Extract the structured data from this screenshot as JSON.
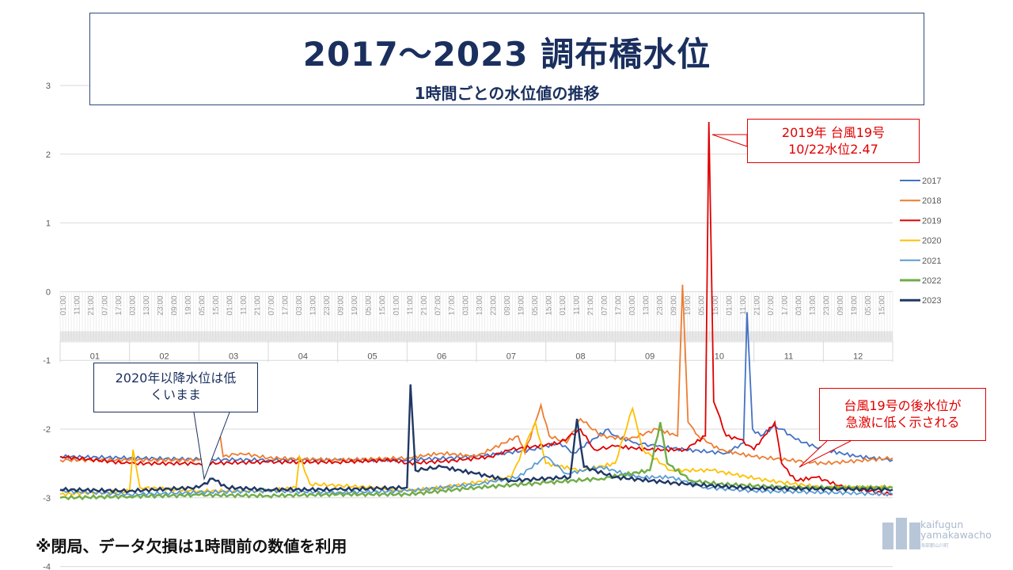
{
  "header": {
    "title": "2017～2023 調布橋水位",
    "subtitle": "1時間ごとの水位値の推移"
  },
  "callouts": {
    "typhoon_peak": [
      "2019年 台風19号",
      "10/22水位2.47"
    ],
    "after_2020": [
      "2020年以降水位は低",
      "くいまま"
    ],
    "after_typhoon": [
      "台風19号の後水位が",
      "急激に低く示される"
    ]
  },
  "footnote": "※閉局、データ欠損は1時間前の数値を利用",
  "logo": {
    "line1": "kaifugun",
    "line2": "yamakawacho",
    "line3": "海部郡山川町"
  },
  "colors": {
    "2017": "#4472C4",
    "2018": "#ED7D31",
    "2019": "#E00000",
    "2020": "#FFC000",
    "2021": "#5B9BD5",
    "2022": "#70AD47",
    "2023": "#203864"
  },
  "chart_data": {
    "type": "line",
    "title": "2017～2023 調布橋水位",
    "ylim": [
      -4,
      3
    ],
    "yticks": [
      3,
      2,
      1,
      0,
      -1,
      -2,
      -3,
      -4
    ],
    "months": [
      "01",
      "02",
      "03",
      "04",
      "05",
      "06",
      "07",
      "08",
      "09",
      "10",
      "11",
      "12"
    ],
    "hour_tick_cycle": [
      "01:00",
      "11:00",
      "21:00",
      "07:00",
      "17:00",
      "03:00",
      "13:00",
      "23:00",
      "09:00",
      "19:00",
      "05:00",
      "15:00"
    ],
    "legend": [
      "2017",
      "2018",
      "2019",
      "2020",
      "2021",
      "2022",
      "2023"
    ],
    "legend_position": "right",
    "series": [
      {
        "name": "2017",
        "points": [
          [
            0,
            -2.4
          ],
          [
            1,
            -2.42
          ],
          [
            2,
            -2.44
          ],
          [
            3,
            -2.45
          ],
          [
            4,
            -2.45
          ],
          [
            5,
            -2.45
          ],
          [
            6,
            -2.4
          ],
          [
            6.8,
            -2.3
          ],
          [
            7.2,
            -2.2
          ],
          [
            7.4,
            -2.35
          ],
          [
            7.9,
            -2.0
          ],
          [
            8.0,
            -2.1
          ],
          [
            8.3,
            -2.2
          ],
          [
            8.6,
            -2.25
          ],
          [
            9.0,
            -2.3
          ],
          [
            9.6,
            -2.35
          ],
          [
            9.85,
            -2.2
          ],
          [
            9.9,
            -0.3
          ],
          [
            9.98,
            -2.0
          ],
          [
            10.1,
            -2.1
          ],
          [
            10.3,
            -1.95
          ],
          [
            10.4,
            -2.0
          ],
          [
            10.6,
            -2.15
          ],
          [
            11.0,
            -2.3
          ],
          [
            11.5,
            -2.4
          ],
          [
            12,
            -2.45
          ]
        ]
      },
      {
        "name": "2018",
        "points": [
          [
            0,
            -2.45
          ],
          [
            1,
            -2.45
          ],
          [
            2.0,
            -2.45
          ],
          [
            2.3,
            -2.05
          ],
          [
            2.35,
            -2.4
          ],
          [
            2.6,
            -2.35
          ],
          [
            3,
            -2.42
          ],
          [
            4,
            -2.45
          ],
          [
            5,
            -2.42
          ],
          [
            5.5,
            -2.35
          ],
          [
            6,
            -2.4
          ],
          [
            6.6,
            -2.1
          ],
          [
            6.7,
            -2.35
          ],
          [
            6.93,
            -1.65
          ],
          [
            7.05,
            -2.1
          ],
          [
            7.3,
            -2.2
          ],
          [
            7.5,
            -1.85
          ],
          [
            7.8,
            -2.1
          ],
          [
            8.2,
            -2.15
          ],
          [
            8.6,
            -2.0
          ],
          [
            8.9,
            -2.1
          ],
          [
            8.97,
            0.1
          ],
          [
            9.05,
            -1.9
          ],
          [
            9.2,
            -2.1
          ],
          [
            9.5,
            -2.3
          ],
          [
            10,
            -2.4
          ],
          [
            11,
            -2.5
          ],
          [
            12,
            -2.42
          ]
        ]
      },
      {
        "name": "2019",
        "points": [
          [
            0,
            -2.4
          ],
          [
            1,
            -2.5
          ],
          [
            2,
            -2.5
          ],
          [
            3,
            -2.48
          ],
          [
            4,
            -2.48
          ],
          [
            4.8,
            -2.45
          ],
          [
            5,
            -2.5
          ],
          [
            5.8,
            -2.45
          ],
          [
            6.2,
            -2.4
          ],
          [
            6.5,
            -2.3
          ],
          [
            7.2,
            -2.2
          ],
          [
            7.5,
            -2.0
          ],
          [
            7.7,
            -2.3
          ],
          [
            8.0,
            -2.25
          ],
          [
            8.5,
            -2.3
          ],
          [
            9.0,
            -2.3
          ],
          [
            9.3,
            -2.1
          ],
          [
            9.35,
            2.47
          ],
          [
            9.42,
            -1.6
          ],
          [
            9.6,
            -2.1
          ],
          [
            9.8,
            -2.15
          ],
          [
            10.0,
            -2.3
          ],
          [
            10.3,
            -1.9
          ],
          [
            10.4,
            -2.5
          ],
          [
            10.6,
            -2.75
          ],
          [
            10.9,
            -2.7
          ],
          [
            11.3,
            -2.85
          ],
          [
            12,
            -2.95
          ]
        ]
      },
      {
        "name": "2020",
        "points": [
          [
            0,
            -2.95
          ],
          [
            1.0,
            -2.9
          ],
          [
            1.05,
            -2.3
          ],
          [
            1.15,
            -2.85
          ],
          [
            2,
            -2.9
          ],
          [
            3,
            -2.9
          ],
          [
            3.4,
            -2.85
          ],
          [
            3.45,
            -2.4
          ],
          [
            3.6,
            -2.8
          ],
          [
            4.5,
            -2.85
          ],
          [
            5,
            -2.9
          ],
          [
            5.5,
            -2.85
          ],
          [
            6.5,
            -2.7
          ],
          [
            6.85,
            -1.9
          ],
          [
            7.0,
            -2.5
          ],
          [
            7.5,
            -2.6
          ],
          [
            8.0,
            -2.5
          ],
          [
            8.25,
            -1.7
          ],
          [
            8.4,
            -2.3
          ],
          [
            8.8,
            -2.6
          ],
          [
            9.4,
            -2.6
          ],
          [
            10.2,
            -2.75
          ],
          [
            11,
            -2.85
          ],
          [
            12,
            -2.85
          ]
        ]
      },
      {
        "name": "2021",
        "points": [
          [
            0,
            -2.9
          ],
          [
            1,
            -2.95
          ],
          [
            2,
            -2.92
          ],
          [
            3,
            -2.9
          ],
          [
            4,
            -2.92
          ],
          [
            5,
            -2.9
          ],
          [
            6,
            -2.8
          ],
          [
            6.6,
            -2.7
          ],
          [
            7.0,
            -2.4
          ],
          [
            7.3,
            -2.65
          ],
          [
            7.8,
            -2.55
          ],
          [
            8.3,
            -2.7
          ],
          [
            8.8,
            -2.7
          ],
          [
            9.3,
            -2.85
          ],
          [
            10,
            -2.9
          ],
          [
            11,
            -2.92
          ],
          [
            12,
            -2.95
          ]
        ]
      },
      {
        "name": "2022",
        "points": [
          [
            0,
            -3.0
          ],
          [
            1,
            -2.98
          ],
          [
            2,
            -2.96
          ],
          [
            3,
            -2.97
          ],
          [
            4,
            -2.95
          ],
          [
            5,
            -2.95
          ],
          [
            6,
            -2.85
          ],
          [
            7,
            -2.78
          ],
          [
            7.8,
            -2.72
          ],
          [
            8.5,
            -2.6
          ],
          [
            8.65,
            -1.9
          ],
          [
            8.75,
            -2.5
          ],
          [
            9.1,
            -2.75
          ],
          [
            9.5,
            -2.8
          ],
          [
            10.5,
            -2.85
          ],
          [
            12,
            -2.85
          ]
        ]
      },
      {
        "name": "2023",
        "points": [
          [
            0,
            -2.88
          ],
          [
            1,
            -2.9
          ],
          [
            2.0,
            -2.85
          ],
          [
            2.2,
            -2.72
          ],
          [
            2.4,
            -2.85
          ],
          [
            3,
            -2.88
          ],
          [
            4,
            -2.88
          ],
          [
            5.0,
            -2.85
          ],
          [
            5.05,
            -1.35
          ],
          [
            5.12,
            -2.6
          ],
          [
            5.5,
            -2.55
          ],
          [
            6.0,
            -2.65
          ],
          [
            6.5,
            -2.75
          ],
          [
            7.35,
            -2.7
          ],
          [
            7.45,
            -1.85
          ],
          [
            7.55,
            -2.55
          ],
          [
            8.0,
            -2.7
          ],
          [
            9.0,
            -2.8
          ],
          [
            10,
            -2.86
          ],
          [
            12,
            -2.88
          ]
        ]
      }
    ]
  }
}
